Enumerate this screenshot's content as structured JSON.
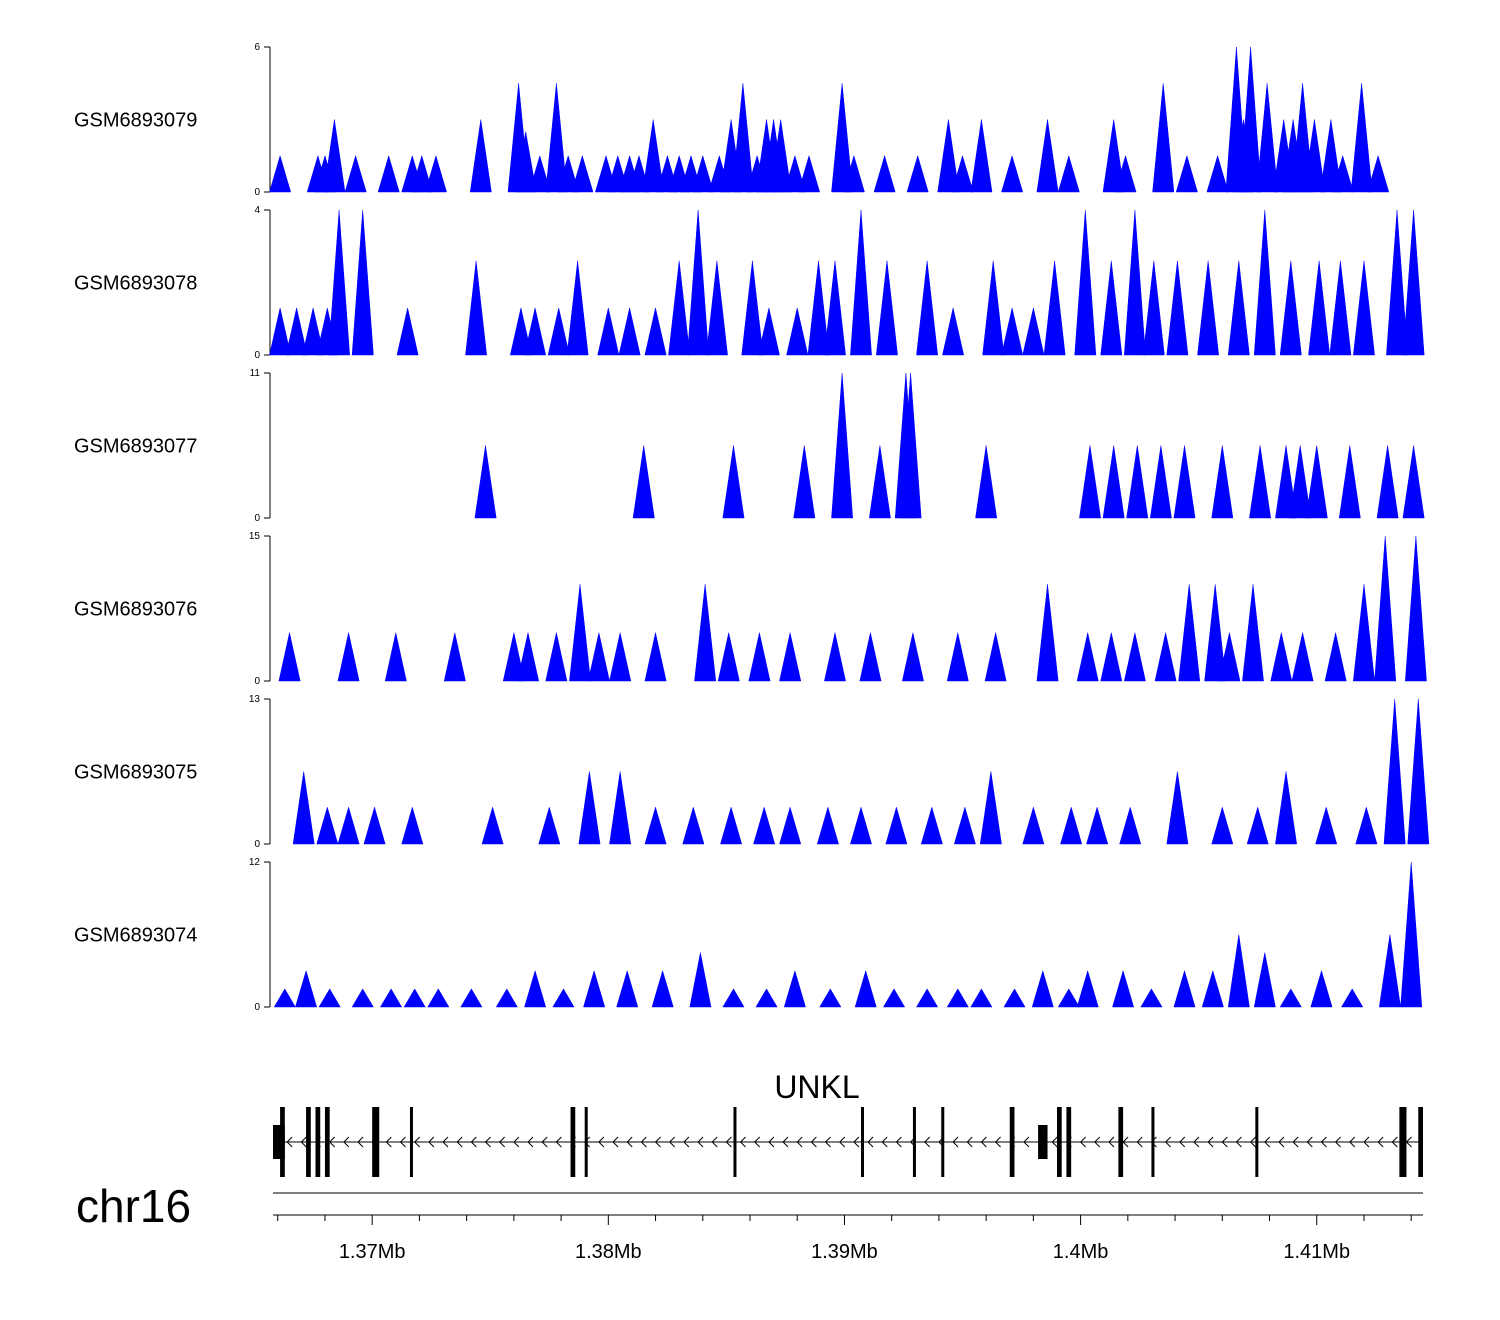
{
  "chart_data": {
    "type": "area",
    "description_units": "genomic coverage tracks; x in Mb",
    "xlim": [
      1.3658,
      1.4145
    ],
    "colors": {
      "signal": "#0000ff",
      "gene": "#000000",
      "axis": "#000000"
    },
    "tracks": [
      {
        "name": "GSM6893079",
        "ymin": 0,
        "ymax": 6,
        "peaks": [
          [
            1.3661,
            1.5
          ],
          [
            1.3677,
            1.5
          ],
          [
            1.368,
            1.5
          ],
          [
            1.3684,
            3
          ],
          [
            1.3693,
            1.5
          ],
          [
            1.3707,
            1.5
          ],
          [
            1.3717,
            1.5
          ],
          [
            1.3721,
            1.5
          ],
          [
            1.3727,
            1.5
          ],
          [
            1.3746,
            3
          ],
          [
            1.3762,
            4.5
          ],
          [
            1.3765,
            2.5
          ],
          [
            1.3771,
            1.5
          ],
          [
            1.3778,
            4.5
          ],
          [
            1.3783,
            1.5
          ],
          [
            1.3789,
            1.5
          ],
          [
            1.3799,
            1.5
          ],
          [
            1.3804,
            1.5
          ],
          [
            1.3809,
            1.5
          ],
          [
            1.3813,
            1.5
          ],
          [
            1.3819,
            3
          ],
          [
            1.3825,
            1.5
          ],
          [
            1.383,
            1.5
          ],
          [
            1.3835,
            1.5
          ],
          [
            1.384,
            1.5
          ],
          [
            1.3847,
            1.5
          ],
          [
            1.3852,
            3
          ],
          [
            1.3857,
            4.5
          ],
          [
            1.3863,
            1.5
          ],
          [
            1.3867,
            3
          ],
          [
            1.387,
            3
          ],
          [
            1.3873,
            3
          ],
          [
            1.3879,
            1.5
          ],
          [
            1.3885,
            1.5
          ],
          [
            1.3899,
            4.5
          ],
          [
            1.3904,
            1.5
          ],
          [
            1.3917,
            1.5
          ],
          [
            1.3931,
            1.5
          ],
          [
            1.3944,
            3
          ],
          [
            1.395,
            1.5
          ],
          [
            1.3958,
            3
          ],
          [
            1.3971,
            1.5
          ],
          [
            1.3986,
            3
          ],
          [
            1.3995,
            1.5
          ],
          [
            1.4014,
            3
          ],
          [
            1.4019,
            1.5
          ],
          [
            1.4035,
            4.5
          ],
          [
            1.4045,
            1.5
          ],
          [
            1.4058,
            1.5
          ],
          [
            1.4066,
            6
          ],
          [
            1.4069,
            3
          ],
          [
            1.4072,
            6
          ],
          [
            1.4079,
            4.5
          ],
          [
            1.4086,
            3
          ],
          [
            1.409,
            3
          ],
          [
            1.4094,
            4.5
          ],
          [
            1.4099,
            3
          ],
          [
            1.4106,
            3
          ],
          [
            1.4111,
            1.5
          ],
          [
            1.4119,
            4.5
          ],
          [
            1.4126,
            1.5
          ]
        ]
      },
      {
        "name": "GSM6893078",
        "ymin": 0,
        "ymax": 4,
        "peaks": [
          [
            1.3661,
            1.3
          ],
          [
            1.3668,
            1.3
          ],
          [
            1.3675,
            1.3
          ],
          [
            1.3681,
            1.3
          ],
          [
            1.3686,
            4
          ],
          [
            1.3696,
            4
          ],
          [
            1.3715,
            1.3
          ],
          [
            1.3744,
            2.6
          ],
          [
            1.3763,
            1.3
          ],
          [
            1.3769,
            1.3
          ],
          [
            1.3779,
            1.3
          ],
          [
            1.3787,
            2.6
          ],
          [
            1.38,
            1.3
          ],
          [
            1.3809,
            1.3
          ],
          [
            1.382,
            1.3
          ],
          [
            1.383,
            2.6
          ],
          [
            1.3838,
            4
          ],
          [
            1.3846,
            2.6
          ],
          [
            1.3861,
            2.6
          ],
          [
            1.3868,
            1.3
          ],
          [
            1.388,
            1.3
          ],
          [
            1.3889,
            2.6
          ],
          [
            1.3896,
            2.6
          ],
          [
            1.3907,
            4
          ],
          [
            1.3918,
            2.6
          ],
          [
            1.3935,
            2.6
          ],
          [
            1.3946,
            1.3
          ],
          [
            1.3963,
            2.6
          ],
          [
            1.3971,
            1.3
          ],
          [
            1.398,
            1.3
          ],
          [
            1.3989,
            2.6
          ],
          [
            1.4002,
            4
          ],
          [
            1.4013,
            2.6
          ],
          [
            1.4023,
            4
          ],
          [
            1.4031,
            2.6
          ],
          [
            1.4041,
            2.6
          ],
          [
            1.4054,
            2.6
          ],
          [
            1.4067,
            2.6
          ],
          [
            1.4078,
            4
          ],
          [
            1.4089,
            2.6
          ],
          [
            1.4101,
            2.6
          ],
          [
            1.411,
            2.6
          ],
          [
            1.412,
            2.6
          ],
          [
            1.4134,
            4
          ],
          [
            1.4141,
            4
          ]
        ]
      },
      {
        "name": "GSM6893077",
        "ymin": 0,
        "ymax": 11,
        "peaks": [
          [
            1.3748,
            5.5
          ],
          [
            1.3815,
            5.5
          ],
          [
            1.3853,
            5.5
          ],
          [
            1.3883,
            5.5
          ],
          [
            1.3899,
            11
          ],
          [
            1.3915,
            5.5
          ],
          [
            1.3926,
            11
          ],
          [
            1.3928,
            11
          ],
          [
            1.396,
            5.5
          ],
          [
            1.4004,
            5.5
          ],
          [
            1.4014,
            5.5
          ],
          [
            1.4024,
            5.5
          ],
          [
            1.4034,
            5.5
          ],
          [
            1.4044,
            5.5
          ],
          [
            1.406,
            5.5
          ],
          [
            1.4076,
            5.5
          ],
          [
            1.4087,
            5.5
          ],
          [
            1.4093,
            5.5
          ],
          [
            1.41,
            5.5
          ],
          [
            1.4114,
            5.5
          ],
          [
            1.413,
            5.5
          ],
          [
            1.4141,
            5.5
          ]
        ]
      },
      {
        "name": "GSM6893076",
        "ymin": 0,
        "ymax": 15,
        "peaks": [
          [
            1.3665,
            5
          ],
          [
            1.369,
            5
          ],
          [
            1.371,
            5
          ],
          [
            1.3735,
            5
          ],
          [
            1.376,
            5
          ],
          [
            1.3766,
            5
          ],
          [
            1.3778,
            5
          ],
          [
            1.3788,
            10
          ],
          [
            1.3796,
            5
          ],
          [
            1.3805,
            5
          ],
          [
            1.382,
            5
          ],
          [
            1.3841,
            10
          ],
          [
            1.3851,
            5
          ],
          [
            1.3864,
            5
          ],
          [
            1.3877,
            5
          ],
          [
            1.3896,
            5
          ],
          [
            1.3911,
            5
          ],
          [
            1.3929,
            5
          ],
          [
            1.3948,
            5
          ],
          [
            1.3964,
            5
          ],
          [
            1.3986,
            10
          ],
          [
            1.4003,
            5
          ],
          [
            1.4013,
            5
          ],
          [
            1.4023,
            5
          ],
          [
            1.4036,
            5
          ],
          [
            1.4046,
            10
          ],
          [
            1.4057,
            10
          ],
          [
            1.4063,
            5
          ],
          [
            1.4073,
            10
          ],
          [
            1.4085,
            5
          ],
          [
            1.4094,
            5
          ],
          [
            1.4108,
            5
          ],
          [
            1.412,
            10
          ],
          [
            1.4129,
            15
          ],
          [
            1.4142,
            15
          ]
        ]
      },
      {
        "name": "GSM6893075",
        "ymin": 0,
        "ymax": 13,
        "peaks": [
          [
            1.3671,
            6.5
          ],
          [
            1.3681,
            3.3
          ],
          [
            1.369,
            3.3
          ],
          [
            1.3701,
            3.3
          ],
          [
            1.3717,
            3.3
          ],
          [
            1.3751,
            3.3
          ],
          [
            1.3775,
            3.3
          ],
          [
            1.3792,
            6.5
          ],
          [
            1.3805,
            6.5
          ],
          [
            1.382,
            3.3
          ],
          [
            1.3836,
            3.3
          ],
          [
            1.3852,
            3.3
          ],
          [
            1.3866,
            3.3
          ],
          [
            1.3877,
            3.3
          ],
          [
            1.3893,
            3.3
          ],
          [
            1.3907,
            3.3
          ],
          [
            1.3922,
            3.3
          ],
          [
            1.3937,
            3.3
          ],
          [
            1.3951,
            3.3
          ],
          [
            1.3962,
            6.5
          ],
          [
            1.398,
            3.3
          ],
          [
            1.3996,
            3.3
          ],
          [
            1.4007,
            3.3
          ],
          [
            1.4021,
            3.3
          ],
          [
            1.4041,
            6.5
          ],
          [
            1.406,
            3.3
          ],
          [
            1.4075,
            3.3
          ],
          [
            1.4087,
            6.5
          ],
          [
            1.4104,
            3.3
          ],
          [
            1.4121,
            3.3
          ],
          [
            1.4133,
            13
          ],
          [
            1.4143,
            13
          ]
        ]
      },
      {
        "name": "GSM6893074",
        "ymin": 0,
        "ymax": 12,
        "peaks": [
          [
            1.3663,
            1.5
          ],
          [
            1.3672,
            3
          ],
          [
            1.3682,
            1.5
          ],
          [
            1.3696,
            1.5
          ],
          [
            1.3708,
            1.5
          ],
          [
            1.3718,
            1.5
          ],
          [
            1.3728,
            1.5
          ],
          [
            1.3742,
            1.5
          ],
          [
            1.3757,
            1.5
          ],
          [
            1.3769,
            3
          ],
          [
            1.3781,
            1.5
          ],
          [
            1.3794,
            3
          ],
          [
            1.3808,
            3
          ],
          [
            1.3823,
            3
          ],
          [
            1.3839,
            4.5
          ],
          [
            1.3853,
            1.5
          ],
          [
            1.3867,
            1.5
          ],
          [
            1.3879,
            3
          ],
          [
            1.3894,
            1.5
          ],
          [
            1.3909,
            3
          ],
          [
            1.3921,
            1.5
          ],
          [
            1.3935,
            1.5
          ],
          [
            1.3948,
            1.5
          ],
          [
            1.3958,
            1.5
          ],
          [
            1.3972,
            1.5
          ],
          [
            1.3984,
            3
          ],
          [
            1.3995,
            1.5
          ],
          [
            1.4003,
            3
          ],
          [
            1.4018,
            3
          ],
          [
            1.403,
            1.5
          ],
          [
            1.4044,
            3
          ],
          [
            1.4056,
            3
          ],
          [
            1.4067,
            6
          ],
          [
            1.4078,
            4.5
          ],
          [
            1.4089,
            1.5
          ],
          [
            1.4102,
            3
          ],
          [
            1.4115,
            1.5
          ],
          [
            1.4131,
            6
          ],
          [
            1.414,
            12
          ]
        ]
      }
    ],
    "gene": {
      "name": "UNKL",
      "strand": "-",
      "start": 1.3658,
      "end": 1.4145,
      "exons": [
        [
          1.3658,
          1.3663
        ],
        [
          1.3661,
          1.3663
        ],
        [
          1.3672,
          1.3674
        ],
        [
          1.3676,
          1.3678
        ],
        [
          1.368,
          1.3682
        ],
        [
          1.37,
          1.3703
        ],
        [
          1.3716,
          1.3717
        ],
        [
          1.3784,
          1.3786
        ],
        [
          1.379,
          1.3791
        ],
        [
          1.3853,
          1.3854
        ],
        [
          1.3907,
          1.3908
        ],
        [
          1.3929,
          1.393
        ],
        [
          1.3941,
          1.3942
        ],
        [
          1.397,
          1.3972
        ],
        [
          1.3982,
          1.3986
        ],
        [
          1.399,
          1.3992
        ],
        [
          1.3994,
          1.3996
        ],
        [
          1.4016,
          1.4018
        ],
        [
          1.403,
          1.4031
        ],
        [
          1.4074,
          1.4075
        ],
        [
          1.4135,
          1.4138
        ],
        [
          1.4143,
          1.4145
        ]
      ]
    },
    "x_ticks": [
      "1.37Mb",
      "1.38Mb",
      "1.39Mb",
      "1.4Mb",
      "1.41Mb"
    ],
    "x_tick_values": [
      1.37,
      1.38,
      1.39,
      1.4,
      1.41
    ],
    "chromosome": "chr16"
  }
}
